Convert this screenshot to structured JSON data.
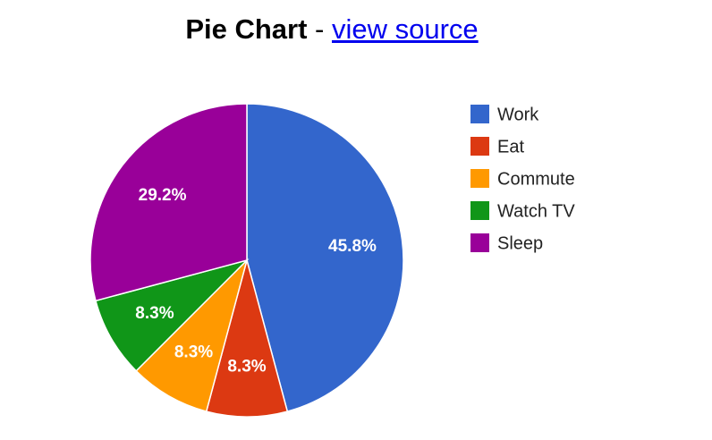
{
  "header": {
    "title": "Pie Chart",
    "separator": " - ",
    "link_text": "view source"
  },
  "chart_data": {
    "type": "pie",
    "categories": [
      "Work",
      "Eat",
      "Commute",
      "Watch TV",
      "Sleep"
    ],
    "values": [
      11,
      2,
      2,
      2,
      7
    ],
    "labels": [
      "45.8%",
      "8.3%",
      "8.3%",
      "8.3%",
      "29.2%"
    ],
    "colors": [
      "#3366cc",
      "#dc3912",
      "#ff9900",
      "#109618",
      "#990099"
    ],
    "legend_position": "right",
    "title": ""
  }
}
